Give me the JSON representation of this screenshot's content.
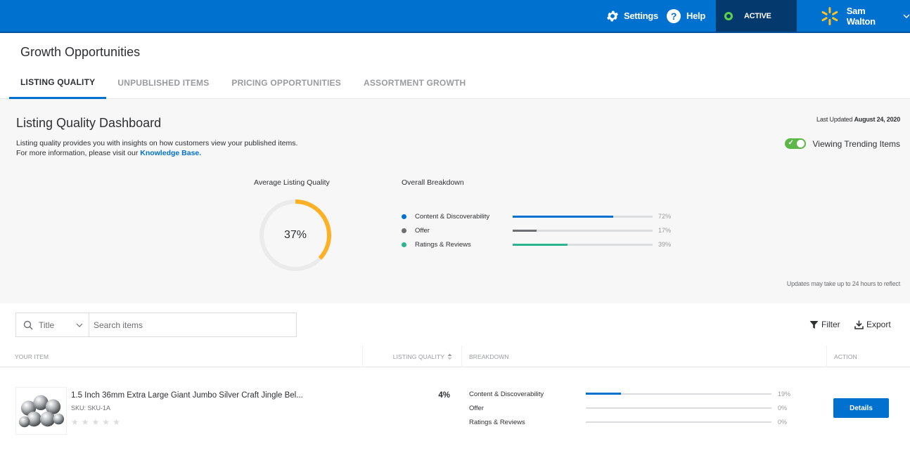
{
  "topbar": {
    "settings_label": "Settings",
    "help_label": "Help",
    "status_label": "ACTIVE",
    "user_name": "Sam Walton",
    "icons": [
      "gear-icon",
      "help-icon",
      "status-dot-icon",
      "spark-logo-icon",
      "chevron-down-icon"
    ]
  },
  "header": {
    "title": "Growth Opportunities",
    "tabs": [
      {
        "label": "LISTING QUALITY",
        "active": true
      },
      {
        "label": "UNPUBLISHED ITEMS",
        "active": false
      },
      {
        "label": "PRICING OPPORTUNITIES",
        "active": false
      },
      {
        "label": "ASSORTMENT GROWTH",
        "active": false
      }
    ]
  },
  "dashboard": {
    "title": "Listing Quality Dashboard",
    "description_line1": "Listing quality provides you with insights on how customers view your published items.",
    "description_line2_prefix": "For more information, please visit our ",
    "knowledge_base_link": "Knowledge Base.",
    "last_updated_prefix": "Last Updated ",
    "last_updated_date": "August 24, 2020",
    "trending_label": "Viewing Trending Items",
    "trending_on": true,
    "average_label": "Average Listing Quality",
    "average_value": "37%",
    "average_fraction": 0.37,
    "breakdown_label": "Overall Breakdown",
    "breakdown": [
      {
        "name": "Content & Discoverability",
        "pct_label": "72%",
        "fraction": 0.72,
        "color": "#0071ce"
      },
      {
        "name": "Offer",
        "pct_label": "17%",
        "fraction": 0.17,
        "color": "#6d6e71"
      },
      {
        "name": "Ratings & Reviews",
        "pct_label": "39%",
        "fraction": 0.39,
        "color": "#2bb58e"
      }
    ],
    "updates_note": "Updates may take up to 24 hours to reflect"
  },
  "colors": {
    "brand_blue": "#0071ce",
    "donut_accent": "#ffb025",
    "status_green": "#5ed14a",
    "spark_yellow": "#ffc220"
  },
  "search": {
    "field_label": "Title",
    "placeholder": "Search items"
  },
  "toolbar": {
    "filter_label": "Filter",
    "export_label": "Export"
  },
  "table": {
    "headers": {
      "item": "YOUR ITEM",
      "quality": "LISTING QUALITY",
      "breakdown": "BREAKDOWN",
      "action": "ACTION"
    },
    "rows": [
      {
        "title": "1.5 Inch 36mm Extra Large Giant Jumbo Silver Craft Jingle Bel...",
        "sku": "SKU: SKU-1A",
        "quality": "4%",
        "rating_stars": 0,
        "breakdown": [
          {
            "name": "Content & Discoverability",
            "pct_label": "19%",
            "fraction": 0.19
          },
          {
            "name": "Offer",
            "pct_label": "0%",
            "fraction": 0
          },
          {
            "name": "Ratings & Reviews",
            "pct_label": "0%",
            "fraction": 0
          }
        ],
        "action_label": "Details"
      }
    ]
  }
}
